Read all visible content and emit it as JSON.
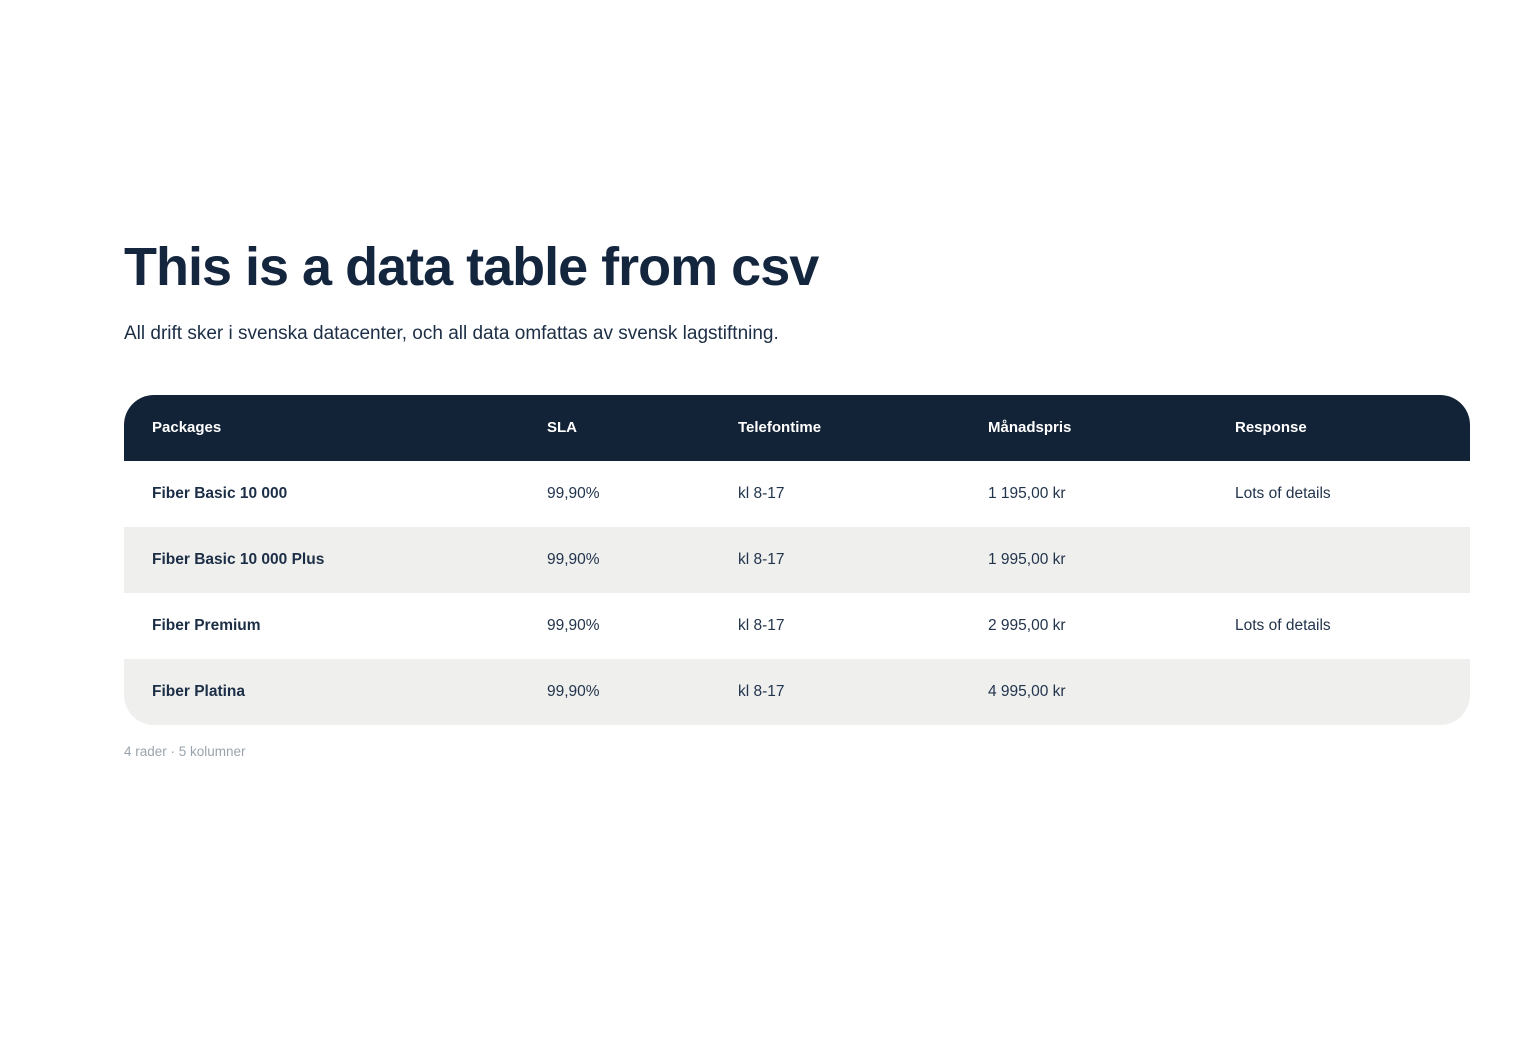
{
  "page": {
    "title": "This is a data table from csv",
    "subtitle": "All drift sker i svenska datacenter, och all data omfattas av svensk lagstiftning.",
    "footer_summary": "4 rader · 5 kolumner"
  },
  "table": {
    "columns": [
      "Packages",
      "SLA",
      "Telefontime",
      "Månadspris",
      "Response"
    ],
    "rows": [
      {
        "packages": "Fiber Basic 10 000",
        "sla": "99,90%",
        "telefontime": "kl 8-17",
        "manadspris": "1 195,00 kr",
        "response": "Lots of details"
      },
      {
        "packages": "Fiber Basic 10 000 Plus",
        "sla": "99,90%",
        "telefontime": "kl 8-17",
        "manadspris": "1 995,00 kr",
        "response": ""
      },
      {
        "packages": "Fiber Premium",
        "sla": "99,90%",
        "telefontime": "kl 8-17",
        "manadspris": "2 995,00 kr",
        "response": "Lots of details"
      },
      {
        "packages": "Fiber Platina",
        "sla": "99,90%",
        "telefontime": "kl 8-17",
        "manadspris": "4 995,00 kr",
        "response": ""
      }
    ]
  },
  "colors": {
    "header_bg": "#132337",
    "row_alt_bg": "#efefee",
    "text_navy": "#1c2e46",
    "footer_gray": "#9aa3ad",
    "page_bg": "#ffffff"
  }
}
